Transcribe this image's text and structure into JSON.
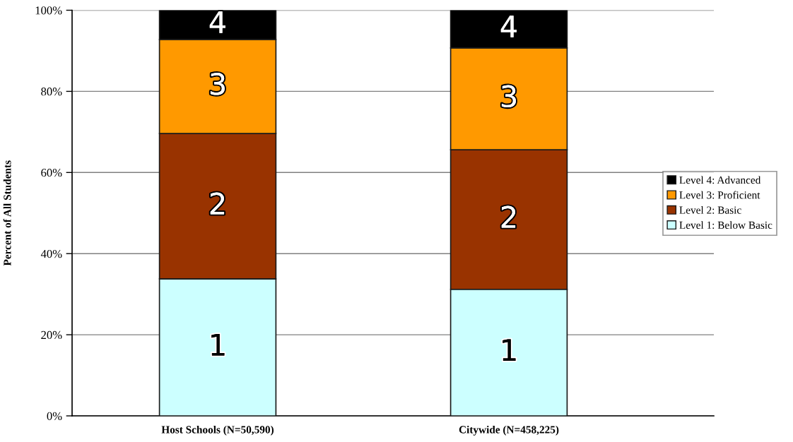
{
  "chart_data": {
    "type": "bar",
    "stacked": true,
    "ylabel": "Percent of All Students",
    "categories": [
      "Host Schools (N=50,590)",
      "Citywide (N=458,225)"
    ],
    "series": [
      {
        "name": "Level 1: Below Basic",
        "color": "#ccffff",
        "values": [
          33.8,
          31.2
        ]
      },
      {
        "name": "Level 2: Basic",
        "color": "#993300",
        "values": [
          35.8,
          34.4
        ]
      },
      {
        "name": "Level 3: Proficient",
        "color": "#ff9900",
        "values": [
          23.2,
          25.1
        ]
      },
      {
        "name": "Level 4: Advanced",
        "color": "#000000",
        "values": [
          7.2,
          9.3
        ]
      }
    ],
    "annotations": [
      "1",
      "1",
      "2",
      "2",
      "3",
      "3",
      "4",
      "4"
    ],
    "ylim": [
      0,
      100
    ],
    "yticks": [
      {
        "value": 0,
        "label": "0%"
      },
      {
        "value": 20,
        "label": "20%"
      },
      {
        "value": 40,
        "label": "40%"
      },
      {
        "value": 60,
        "label": "60%"
      },
      {
        "value": 80,
        "label": "80%"
      },
      {
        "value": 100,
        "label": "100%"
      }
    ],
    "grid": "y",
    "legend": "right"
  }
}
